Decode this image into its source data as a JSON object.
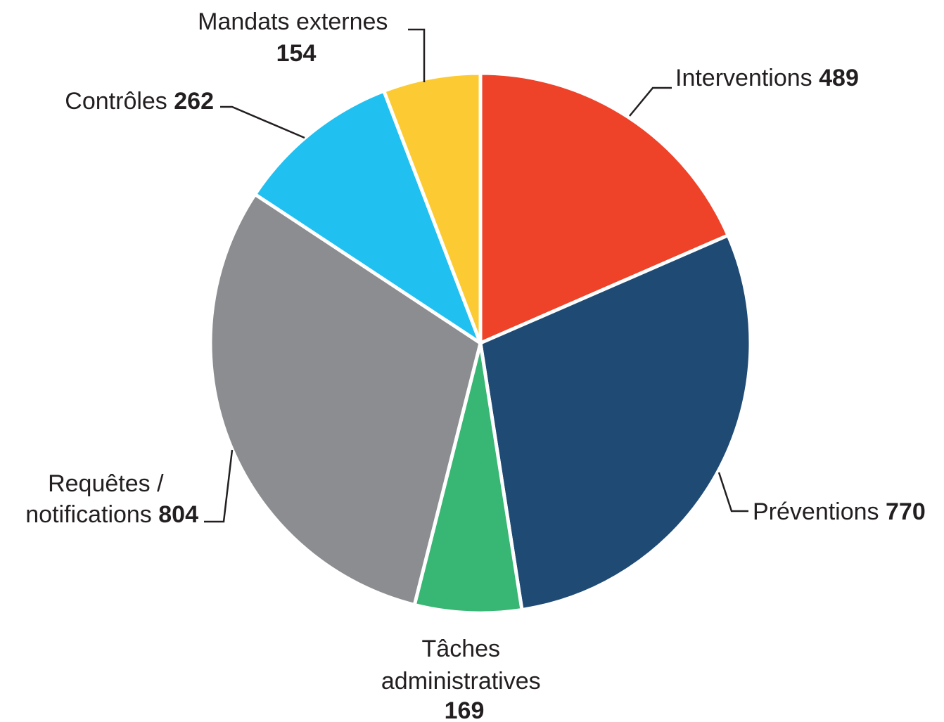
{
  "chart_data": {
    "type": "pie",
    "title": "",
    "slices": [
      {
        "label_lines": [
          "Interventions"
        ],
        "value": 489,
        "color": "#ee4229"
      },
      {
        "label_lines": [
          "Préventions"
        ],
        "value": 770,
        "color": "#1f4a73"
      },
      {
        "label_lines": [
          "Tâches",
          "administratives"
        ],
        "value": 169,
        "color": "#38b673"
      },
      {
        "label_lines": [
          "Requêtes /",
          "notifications"
        ],
        "value": 804,
        "color": "#8c8d90"
      },
      {
        "label_lines": [
          "Contrôles"
        ],
        "value": 262,
        "color": "#20c0f0"
      },
      {
        "label_lines": [
          "Mandats externes"
        ],
        "value": 154,
        "color": "#fcca32"
      }
    ],
    "start_angle_deg": 0,
    "direction": "clockwise"
  }
}
